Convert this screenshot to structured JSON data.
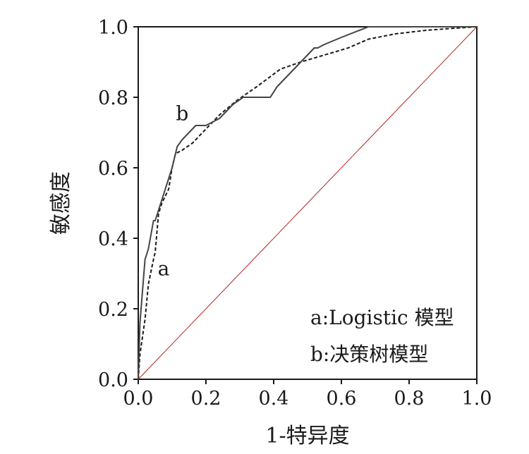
{
  "chart_data": {
    "type": "line",
    "xlabel": "1-特异度",
    "ylabel": "敏感度",
    "xlim": [
      0,
      1
    ],
    "ylim": [
      0,
      1
    ],
    "x_ticks": [
      "0.0",
      "0.2",
      "0.4",
      "0.6",
      "0.8",
      "1.0"
    ],
    "y_ticks": [
      "0.0",
      "0.2",
      "0.4",
      "0.6",
      "0.8",
      "1.0"
    ],
    "grid": false,
    "legend": {
      "position": "bottom-right",
      "entries": [
        "a:Logistic 模型",
        "b:决策树模型"
      ]
    },
    "series": [
      {
        "label": "a",
        "style": "dashed",
        "color": "#1a1a1a",
        "x": [
          0.0,
          0.005,
          0.02,
          0.03,
          0.045,
          0.05,
          0.06,
          0.07,
          0.09,
          0.1,
          0.11,
          0.13,
          0.16,
          0.2,
          0.24,
          0.29,
          0.35,
          0.42,
          0.48,
          0.55,
          0.62,
          0.68,
          0.76,
          0.85,
          0.92,
          1.0
        ],
        "y": [
          0.0,
          0.07,
          0.17,
          0.27,
          0.34,
          0.36,
          0.47,
          0.5,
          0.54,
          0.6,
          0.64,
          0.65,
          0.67,
          0.71,
          0.75,
          0.79,
          0.83,
          0.88,
          0.9,
          0.92,
          0.94,
          0.965,
          0.98,
          0.99,
          0.995,
          1.0
        ]
      },
      {
        "label": "b",
        "style": "solid",
        "color": "#444444",
        "x": [
          0.0,
          0.005,
          0.02,
          0.03,
          0.045,
          0.05,
          0.06,
          0.07,
          0.09,
          0.1,
          0.115,
          0.13,
          0.17,
          0.2,
          0.24,
          0.28,
          0.31,
          0.39,
          0.41,
          0.46,
          0.52,
          0.53,
          0.55,
          0.6,
          0.68,
          0.72,
          0.85,
          1.0
        ],
        "y": [
          0.0,
          0.16,
          0.34,
          0.37,
          0.45,
          0.45,
          0.48,
          0.51,
          0.57,
          0.6,
          0.66,
          0.68,
          0.72,
          0.72,
          0.74,
          0.78,
          0.8,
          0.8,
          0.83,
          0.88,
          0.94,
          0.94,
          0.95,
          0.97,
          1.0,
          1.0,
          1.0,
          1.0
        ]
      },
      {
        "label": "reference",
        "style": "solid",
        "color": "#b22222",
        "x": [
          0,
          1
        ],
        "y": [
          0,
          1
        ]
      }
    ],
    "annotations": [
      {
        "text": "b",
        "x": 0.13,
        "y": 0.735
      },
      {
        "text": "a",
        "x": 0.075,
        "y": 0.295
      }
    ]
  }
}
